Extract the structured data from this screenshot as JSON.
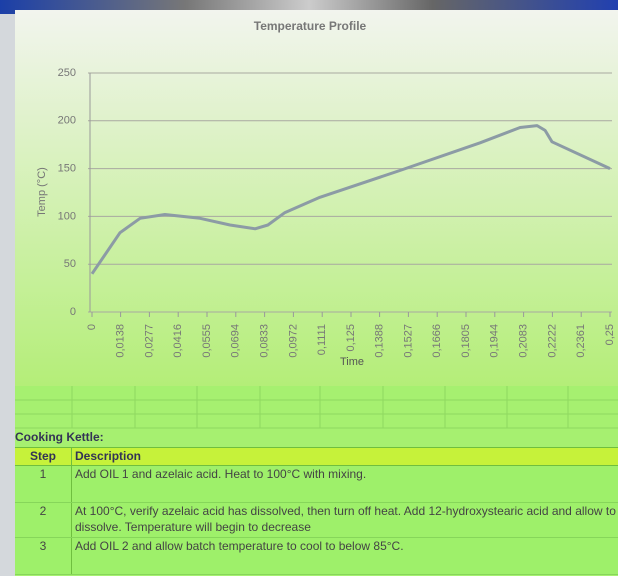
{
  "chart_data": {
    "type": "line",
    "title": "Temperature Profile",
    "xlabel": "Time",
    "ylabel": "Temp (°C)",
    "x": [
      0,
      0.0135,
      0.0232,
      0.0352,
      0.0521,
      0.0666,
      0.0787,
      0.0849,
      0.0931,
      0.11,
      0.1486,
      0.1873,
      0.2066,
      0.2148,
      0.2187,
      0.222,
      0.25
    ],
    "values": [
      40,
      83,
      98,
      102,
      98,
      91,
      87,
      91,
      104,
      120,
      148,
      177,
      193,
      195,
      190,
      178,
      150
    ],
    "color": "#8c9ba5",
    "xlim": [
      0,
      0.25
    ],
    "ylim": [
      0,
      250
    ],
    "xticks": [
      0,
      {
        "value": 0.0138,
        "label": "0,0138"
      },
      {
        "value": 0.0277,
        "label": "0,0277"
      },
      {
        "value": 0.0416,
        "label": "0,0416"
      },
      {
        "value": 0.0555,
        "label": "0,0555"
      },
      {
        "value": 0.0694,
        "label": "0,0694"
      },
      {
        "value": 0.0833,
        "label": "0,0833"
      },
      {
        "value": 0.0972,
        "label": "0,0972"
      },
      {
        "value": 0.1111,
        "label": "0,1111"
      },
      {
        "value": 0.125,
        "label": "0,125"
      },
      {
        "value": 0.1388,
        "label": "0,1388"
      },
      {
        "value": 0.1527,
        "label": "0,1527"
      },
      {
        "value": 0.1666,
        "label": "0,1666"
      },
      {
        "value": 0.1805,
        "label": "0,1805"
      },
      {
        "value": 0.1944,
        "label": "0,1944"
      },
      {
        "value": 0.2083,
        "label": "0,2083"
      },
      {
        "value": 0.2222,
        "label": "0,2222"
      },
      {
        "value": 0.2361,
        "label": "0,2361"
      },
      {
        "value": 0.25,
        "label": "0,25"
      }
    ],
    "yticks": [
      0,
      50,
      100,
      150,
      200,
      250
    ],
    "grid": true
  },
  "table": {
    "title": "Cooking Kettle:",
    "header": [
      "Step",
      "Description"
    ],
    "rows": [
      [
        "1",
        "Add OIL 1 and azelaic acid.  Heat to 100°C with mixing."
      ],
      [
        "2",
        "At 100°C, verify azelaic acid has dissolved, then turn off heat.  Add 12-hydroxystearic acid and allow to dissolve.  Temperature will begin to decrease"
      ],
      [
        "3",
        "Add OIL 2 and allow batch temperature to cool to below 85°C."
      ]
    ]
  }
}
